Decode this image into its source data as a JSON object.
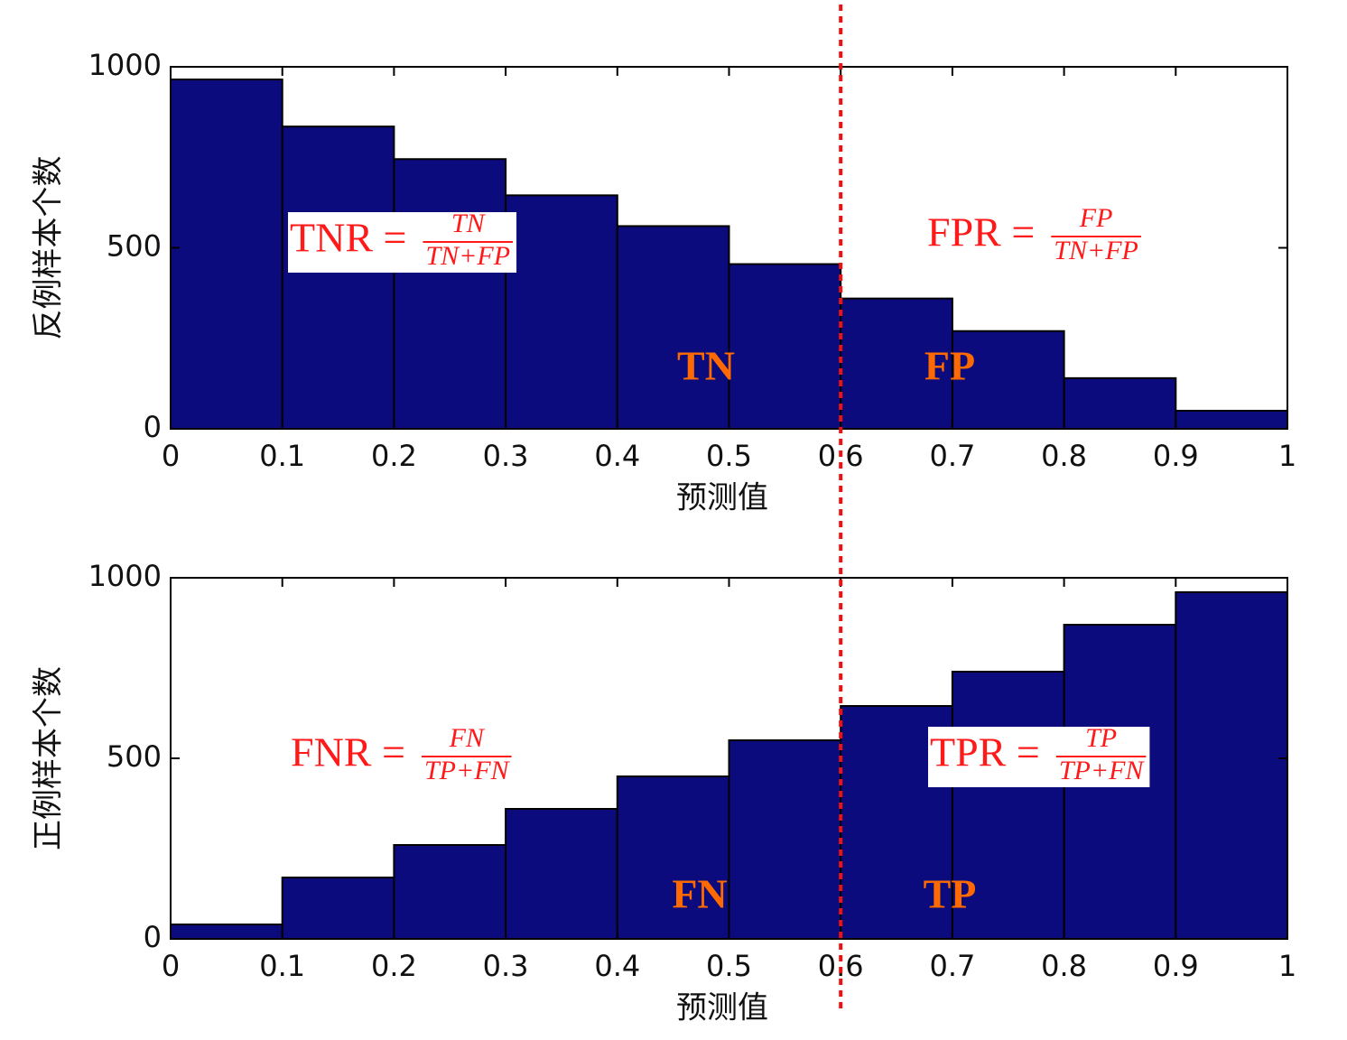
{
  "threshold": 0.6,
  "chart_data": [
    {
      "type": "histogram",
      "ylabel": "反例样本个数",
      "xlabel": "预测值",
      "bins": [
        0,
        0.1,
        0.2,
        0.3,
        0.4,
        0.5,
        0.6,
        0.7,
        0.8,
        0.9,
        1
      ],
      "values": [
        965,
        835,
        745,
        645,
        560,
        455,
        360,
        270,
        140,
        50
      ],
      "color": "#0b0b7d",
      "xlim": [
        0,
        1
      ],
      "xticks": [
        0,
        0.1,
        0.2,
        0.3,
        0.4,
        0.5,
        0.6,
        0.7,
        0.8,
        0.9,
        1
      ],
      "ylim": [
        0,
        1000
      ],
      "yticks": [
        0,
        500,
        1000
      ],
      "formulas": [
        {
          "label": "TNR =",
          "numerator": "TN",
          "denominator": "TN+FP",
          "boxed": true
        },
        {
          "label": "FPR =",
          "numerator": "FP",
          "denominator": "TN+FP",
          "boxed": false
        }
      ],
      "regions": [
        "TN",
        "FP"
      ]
    },
    {
      "type": "histogram",
      "ylabel": "正例样本个数",
      "xlabel": "预测值",
      "bins": [
        0,
        0.1,
        0.2,
        0.3,
        0.4,
        0.5,
        0.6,
        0.7,
        0.8,
        0.9,
        1
      ],
      "values": [
        40,
        170,
        260,
        360,
        450,
        550,
        645,
        740,
        870,
        960
      ],
      "color": "#0b0b7d",
      "xlim": [
        0,
        1
      ],
      "xticks": [
        0,
        0.1,
        0.2,
        0.3,
        0.4,
        0.5,
        0.6,
        0.7,
        0.8,
        0.9,
        1
      ],
      "ylim": [
        0,
        1000
      ],
      "yticks": [
        0,
        500,
        1000
      ],
      "formulas": [
        {
          "label": "FNR =",
          "numerator": "FN",
          "denominator": "TP+FN",
          "boxed": false
        },
        {
          "label": "TPR =",
          "numerator": "TP",
          "denominator": "TP+FN",
          "boxed": true
        }
      ],
      "regions": [
        "FN",
        "TP"
      ]
    }
  ]
}
